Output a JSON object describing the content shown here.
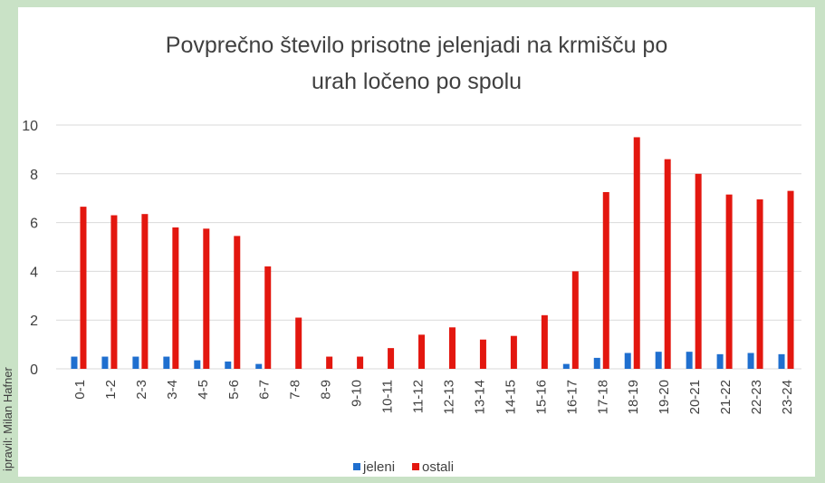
{
  "chart_data": {
    "type": "bar",
    "title": [
      "Povprečno število prisotne jelenjadi na krmišču po",
      "urah ločeno po spolu"
    ],
    "credit": "ipravil: Milan Hafner",
    "categories": [
      "0-1",
      "1-2",
      "2-3",
      "3-4",
      "4-5",
      "5-6",
      "6-7",
      "7-8",
      "8-9",
      "9-10",
      "10-11",
      "11-12",
      "12-13",
      "13-14",
      "14-15",
      "15-16",
      "16-17",
      "17-18",
      "18-19",
      "19-20",
      "20-21",
      "21-22",
      "22-23",
      "23-24"
    ],
    "series": [
      {
        "name": "jeleni",
        "color": "#1f6fcf",
        "values": [
          0.5,
          0.5,
          0.5,
          0.5,
          0.35,
          0.3,
          0.2,
          0,
          0,
          0,
          0,
          0,
          0,
          0,
          0,
          0,
          0.2,
          0.45,
          0.65,
          0.7,
          0.7,
          0.6,
          0.65,
          0.6
        ]
      },
      {
        "name": "ostali",
        "color": "#e3170f",
        "values": [
          6.65,
          6.3,
          6.35,
          5.8,
          5.75,
          5.45,
          4.2,
          2.1,
          0.5,
          0.5,
          0.85,
          1.4,
          1.7,
          1.2,
          1.35,
          2.2,
          4.0,
          7.25,
          9.5,
          8.6,
          8.0,
          7.15,
          6.95,
          7.3
        ]
      }
    ],
    "ylim": [
      0,
      10
    ],
    "yticks": [
      0,
      2,
      4,
      6,
      8,
      10
    ],
    "grid": true,
    "legend": "bottom"
  }
}
